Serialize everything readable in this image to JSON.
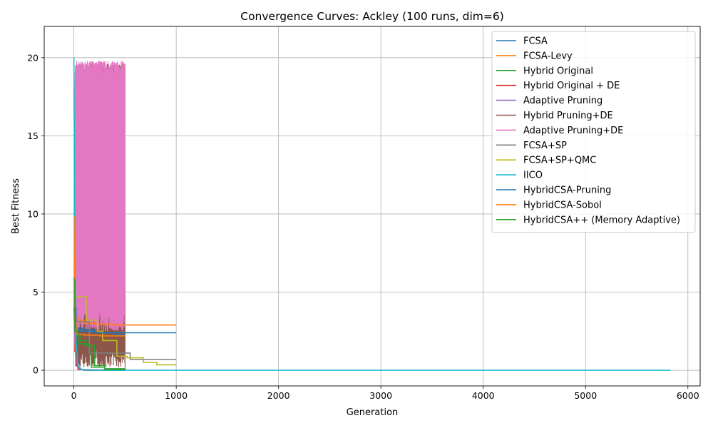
{
  "chart_data": {
    "type": "line",
    "title": "Convergence Curves: Ackley (100 runs, dim=6)",
    "xlabel": "Generation",
    "ylabel": "Best Fitness",
    "xlim": [
      -290,
      6120
    ],
    "ylim": [
      -1.0,
      22.0
    ],
    "xticks": [
      0,
      1000,
      2000,
      3000,
      4000,
      5000,
      6000
    ],
    "yticks": [
      0,
      5,
      10,
      15,
      20
    ],
    "grid": true,
    "legend_position": "top-right",
    "series": [
      {
        "name": "FCSA",
        "color": "#1f77b4",
        "style": "step",
        "points": [
          [
            0,
            6.0
          ],
          [
            5,
            3.5
          ],
          [
            15,
            2.6
          ],
          [
            60,
            2.5
          ],
          [
            200,
            2.4
          ],
          [
            1000,
            2.4
          ]
        ]
      },
      {
        "name": "FCSA-Levy",
        "color": "#ff7f0e",
        "style": "step",
        "points": [
          [
            0,
            11.5
          ],
          [
            5,
            6.0
          ],
          [
            12,
            3.4
          ],
          [
            40,
            3.2
          ],
          [
            100,
            3.0
          ],
          [
            200,
            2.95
          ],
          [
            400,
            2.9
          ],
          [
            1000,
            2.9
          ]
        ]
      },
      {
        "name": "Hybrid Original",
        "color": "#2ca02c",
        "style": "step",
        "points": [
          [
            0,
            5.5
          ],
          [
            10,
            3.0
          ],
          [
            30,
            2.2
          ],
          [
            60,
            1.9
          ],
          [
            120,
            1.6
          ],
          [
            200,
            0.3
          ],
          [
            300,
            0.1
          ],
          [
            500,
            0.05
          ]
        ]
      },
      {
        "name": "Hybrid Original + DE",
        "color": "#d62728",
        "style": "step",
        "points": [
          [
            0,
            4.5
          ],
          [
            10,
            1.2
          ],
          [
            20,
            0.3
          ],
          [
            40,
            0.05
          ],
          [
            100,
            0.0
          ],
          [
            500,
            0.0
          ]
        ]
      },
      {
        "name": "Adaptive Pruning",
        "color": "#9467bd",
        "style": "line",
        "points": [
          [
            0,
            4.0
          ],
          [
            20,
            0.5
          ],
          [
            60,
            0.05
          ],
          [
            500,
            0.0
          ]
        ]
      },
      {
        "name": "Hybrid Pruning+DE",
        "color": "#8c564b",
        "style": "oscillating",
        "x_range": [
          20,
          500
        ],
        "y_low": 0.2,
        "y_high": 19.6,
        "points": [
          [
            500,
            4.8
          ],
          [
            500,
            0.0
          ]
        ]
      },
      {
        "name": "Adaptive Pruning+DE",
        "color": "#e377c2",
        "style": "oscillating",
        "x_range": [
          10,
          500
        ],
        "y_low": 2.5,
        "y_high": 19.8,
        "points": [
          [
            500,
            18.2
          ]
        ]
      },
      {
        "name": "FCSA+SP",
        "color": "#7f7f7f",
        "style": "step",
        "points": [
          [
            0,
            4.8
          ],
          [
            15,
            3.1
          ],
          [
            60,
            3.1
          ],
          [
            150,
            1.1
          ],
          [
            500,
            1.1
          ],
          [
            550,
            0.7
          ],
          [
            1000,
            0.7
          ]
        ]
      },
      {
        "name": "FCSA+SP+QMC",
        "color": "#bcbd22",
        "style": "step",
        "points": [
          [
            0,
            5.5
          ],
          [
            15,
            4.7
          ],
          [
            100,
            4.7
          ],
          [
            120,
            3.2
          ],
          [
            200,
            3.2
          ],
          [
            230,
            2.5
          ],
          [
            280,
            1.9
          ],
          [
            400,
            1.9
          ],
          [
            420,
            0.9
          ],
          [
            500,
            0.9
          ],
          [
            520,
            0.8
          ],
          [
            600,
            0.8
          ],
          [
            680,
            0.5
          ],
          [
            800,
            0.5
          ],
          [
            810,
            0.35
          ],
          [
            1000,
            0.35
          ]
        ]
      },
      {
        "name": "IICO",
        "color": "#17becf",
        "style": "line",
        "points": [
          [
            0,
            20.0
          ],
          [
            5,
            14.0
          ],
          [
            10,
            8.0
          ],
          [
            20,
            2.0
          ],
          [
            40,
            0.3
          ],
          [
            80,
            0.02
          ],
          [
            200,
            0.0
          ],
          [
            5830,
            0.0
          ]
        ]
      },
      {
        "name": "HybridCSA-Pruning",
        "color": "#1f77b4",
        "style": "step",
        "points": [
          [
            0,
            4.0
          ],
          [
            20,
            2.7
          ],
          [
            80,
            2.6
          ],
          [
            200,
            2.4
          ],
          [
            400,
            2.3
          ],
          [
            500,
            2.3
          ]
        ]
      },
      {
        "name": "HybridCSA-Sobol",
        "color": "#ff7f0e",
        "style": "step",
        "points": [
          [
            0,
            9.8
          ],
          [
            10,
            3.0
          ],
          [
            30,
            2.3
          ],
          [
            100,
            2.25
          ],
          [
            250,
            2.2
          ],
          [
            500,
            2.2
          ]
        ]
      },
      {
        "name": "HybridCSA++ (Memory Adaptive)",
        "color": "#2ca02c",
        "style": "step",
        "points": [
          [
            0,
            5.8
          ],
          [
            10,
            2.5
          ],
          [
            40,
            1.7
          ],
          [
            100,
            1.6
          ],
          [
            150,
            1.5
          ],
          [
            170,
            0.2
          ],
          [
            300,
            0.05
          ],
          [
            500,
            0.0
          ]
        ]
      }
    ]
  }
}
